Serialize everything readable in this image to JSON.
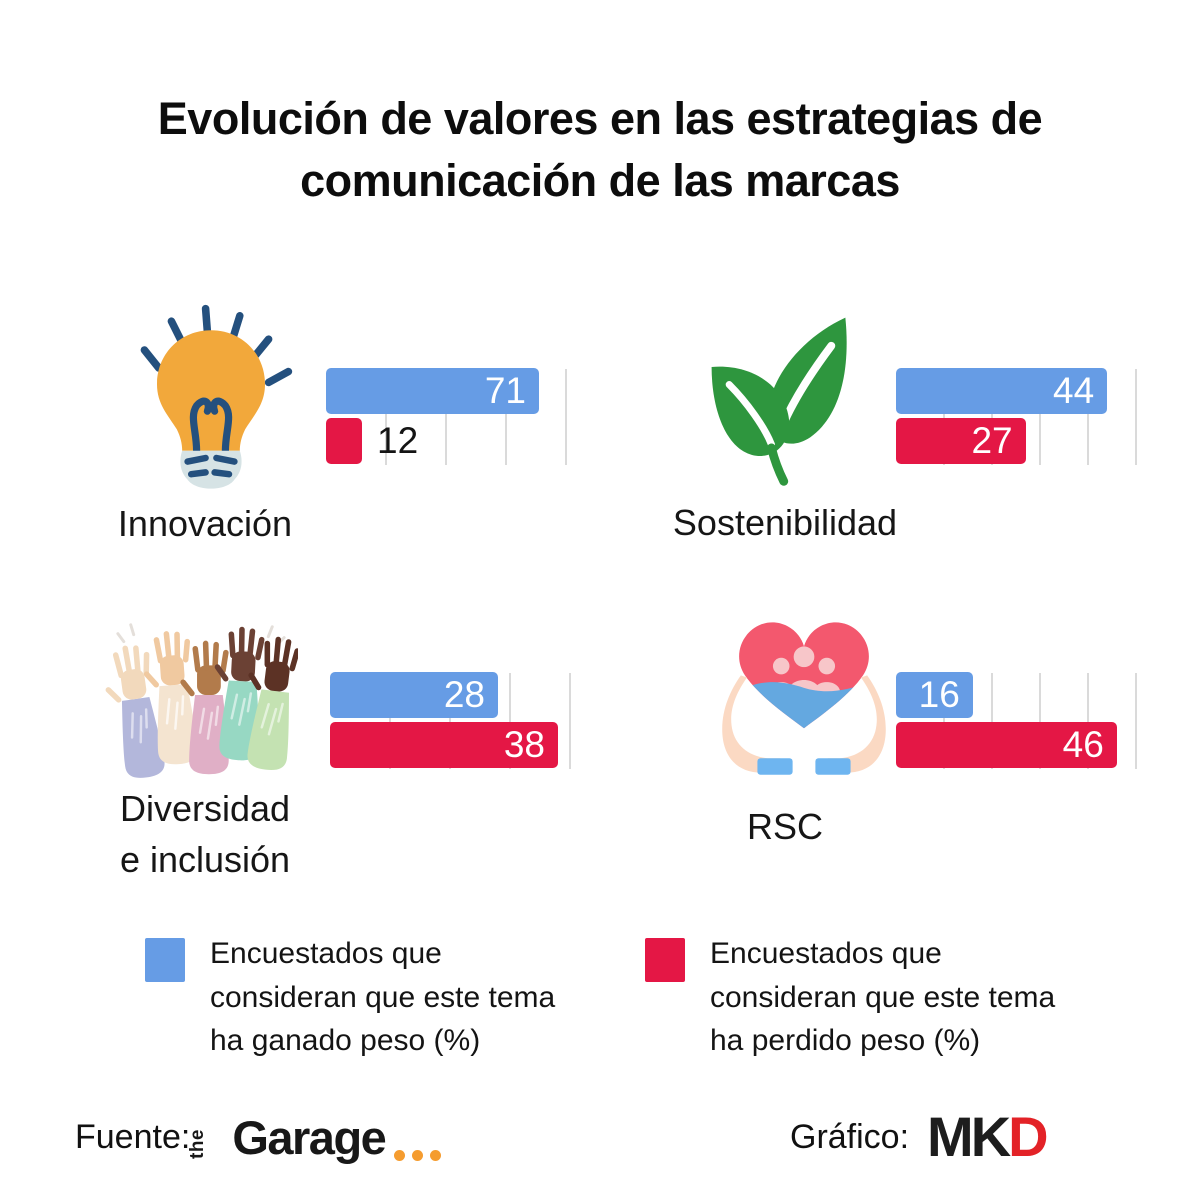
{
  "title_lines": [
    "Evolución de valores en las estrategias de",
    "comunicación de las marcas"
  ],
  "groups": [
    {
      "name": "Innovación",
      "label_lines": [
        "Innovación"
      ],
      "icon": "lightbulb-icon",
      "outside_lost": true
    },
    {
      "name": "Sostenibilidad",
      "label_lines": [
        "Sostenibilidad"
      ],
      "icon": "leaves-icon"
    },
    {
      "name": "Diversidad e inclusión",
      "label_lines": [
        "Diversidad",
        "e inclusión"
      ],
      "icon": "raised-hands-icon"
    },
    {
      "name": "RSC",
      "label_lines": [
        "RSC"
      ],
      "icon": "heart-in-hands-icon"
    }
  ],
  "legend": {
    "gained_lines": [
      "Encuestados que",
      "consideran que este tema",
      "ha ganado peso (%)"
    ],
    "lost_lines": [
      "Encuestados que",
      "consideran que este tema",
      "ha perdido peso (%)"
    ]
  },
  "footer": {
    "source_label": "Fuente:",
    "garage_the": "the",
    "garage_word": "Garage",
    "credit_label": "Gráfico:",
    "mkd_mk": "MK",
    "mkd_d": "D"
  },
  "colors": {
    "gained_blue": "#669CE5",
    "lost_red": "#E41745",
    "gridline": "#DADADA",
    "title_black": "#0D0D0D",
    "leaf_green": "#2E963E",
    "bulb_orange": "#F2A83B",
    "logo_dot_orange": "#F59C2F",
    "mkd_red": "#E32227"
  },
  "chart_data": {
    "type": "bar",
    "orientation": "horizontal",
    "title": "Evolución de valores en las estrategias de comunicación de las marcas",
    "categories": [
      "Innovación",
      "Sostenibilidad",
      "Diversidad e inclusión",
      "RSC"
    ],
    "series": [
      {
        "name": "Encuestados que consideran que este tema ha ganado peso (%)",
        "color": "#669CE5",
        "values": [
          71,
          44,
          28,
          16
        ]
      },
      {
        "name": "Encuestados que consideran que este tema ha perdido peso (%)",
        "color": "#E41745",
        "values": [
          12,
          27,
          38,
          46
        ]
      }
    ],
    "axis_max_per_category": [
      80,
      50,
      40,
      50
    ],
    "grid_step_per_category": [
      20,
      10,
      10,
      10
    ],
    "grid": true,
    "legend_position": "bottom",
    "value_labels": true
  }
}
